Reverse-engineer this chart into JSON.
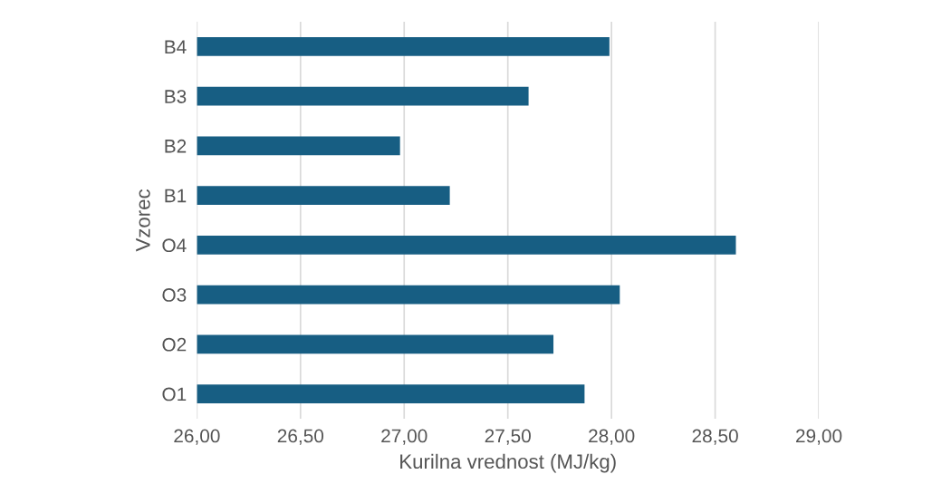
{
  "chart_data": {
    "type": "bar",
    "orientation": "horizontal",
    "xlabel": "Kurilna vrednost (MJ/kg)",
    "ylabel": "Vzorec",
    "categories": [
      "B4",
      "B3",
      "B2",
      "B1",
      "O4",
      "O3",
      "O2",
      "O1"
    ],
    "values": [
      27.99,
      27.6,
      26.98,
      27.22,
      28.6,
      28.04,
      27.72,
      27.87
    ],
    "color": "#175e83",
    "xlim": [
      26,
      29
    ],
    "xticks": [
      {
        "value": 26,
        "label": "26,00"
      },
      {
        "value": 26.5,
        "label": "26,50"
      },
      {
        "value": 27,
        "label": "27,00"
      },
      {
        "value": 27.5,
        "label": "27,50"
      },
      {
        "value": 28,
        "label": "28,00"
      },
      {
        "value": 28.5,
        "label": "28,50"
      },
      {
        "value": 29,
        "label": "29,00"
      }
    ],
    "grid": "x"
  }
}
